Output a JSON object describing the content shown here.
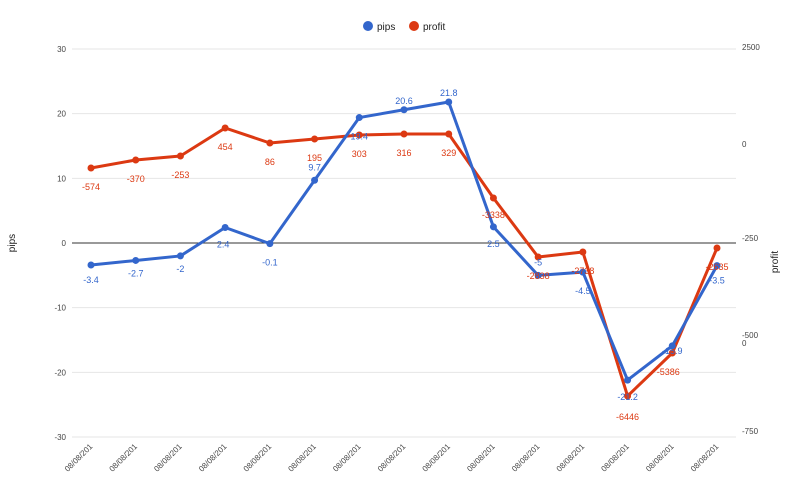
{
  "chart_data": {
    "type": "line",
    "categories": [
      "08/08/201",
      "08/08/201",
      "08/08/201",
      "08/08/201",
      "08/08/201",
      "08/08/201",
      "08/08/201",
      "08/08/201",
      "08/08/201",
      "08/08/201",
      "08/08/201",
      "08/08/201",
      "08/08/201",
      "08/08/201",
      "08/08/201"
    ],
    "left_axis": {
      "label": "pips",
      "ylim": [
        -30,
        30
      ],
      "ticks": [
        "30",
        "20",
        "10",
        "0",
        "-10",
        "-20",
        "-30"
      ]
    },
    "right_axis": {
      "label": "profit",
      "ticks": [
        "2500",
        "0",
        "-250",
        "-500\n0",
        "-750"
      ]
    },
    "legend": {
      "placement": "top-center"
    },
    "grid": true,
    "series": [
      {
        "name": "pips",
        "color": "#3366cc",
        "axis": "left",
        "values": [
          -3.4,
          -2.7,
          -2,
          2.4,
          -0.1,
          9.7,
          19.4,
          20.6,
          21.8,
          2.5,
          -5,
          -4.5,
          -21.2,
          -15.9,
          -3.5
        ],
        "labels": [
          "-3.4",
          "-2.7",
          "-2",
          "2.4",
          "-0.1",
          "9.7",
          "19.4",
          "20.6",
          "21.8",
          "2.5",
          "-5",
          "-4.5",
          "-21.2",
          "-15.9",
          "-3.5"
        ]
      },
      {
        "name": "profit",
        "color": "#dc3912",
        "axis": "right",
        "values": [
          -574,
          -370,
          -253,
          454,
          86,
          195,
          303,
          316,
          329,
          -3338,
          -2838,
          -2738,
          -6446,
          -5386,
          -2635
        ],
        "labels": [
          "-574",
          "-370",
          "-253",
          "454",
          "86",
          "195",
          "303",
          "316",
          "329",
          "-3338",
          "-2838",
          "-2738",
          "-6446",
          "-5386",
          "-2635"
        ]
      }
    ]
  }
}
